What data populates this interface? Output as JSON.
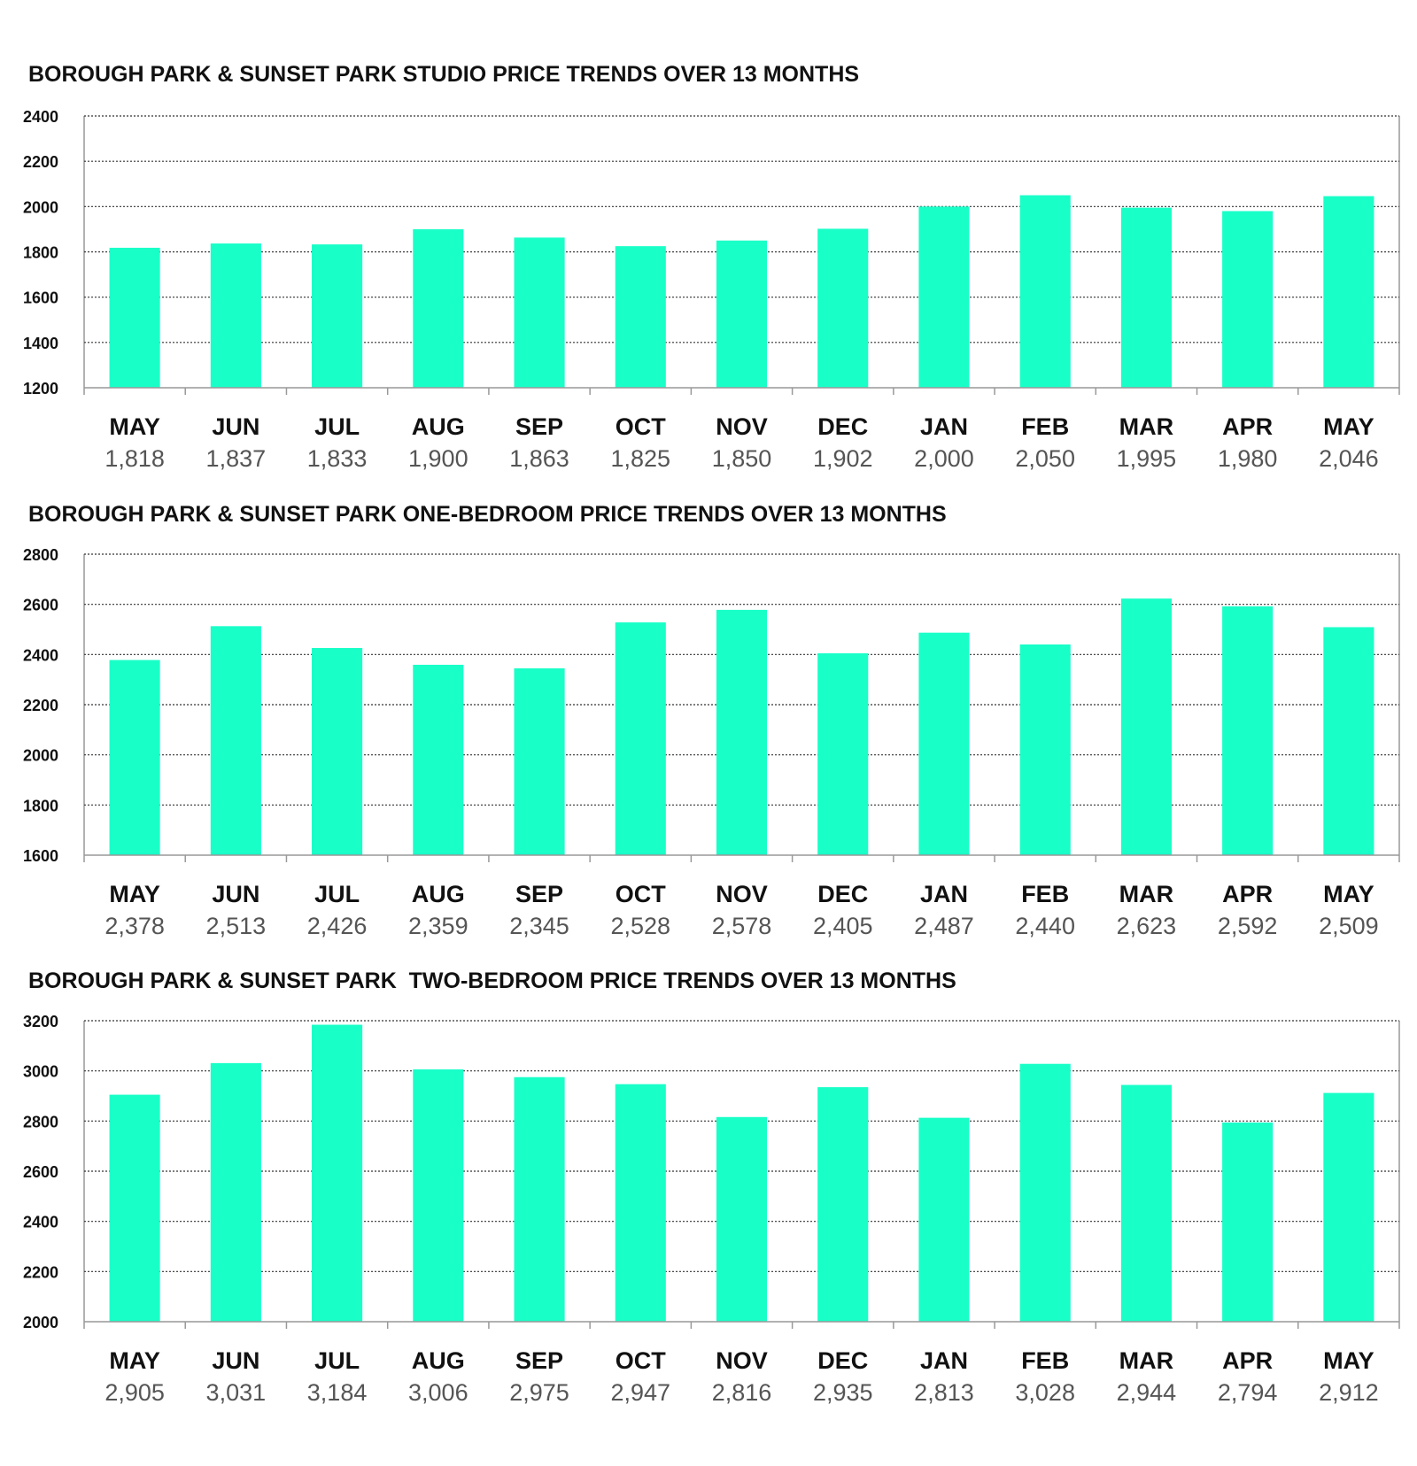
{
  "colors": {
    "bar": "#19ffc8",
    "grid": "#333333",
    "axis": "#999999"
  },
  "chart_data": [
    {
      "type": "bar",
      "title": "BOROUGH PARK & SUNSET PARK STUDIO PRICE TRENDS OVER 13 MONTHS",
      "categories": [
        "MAY",
        "JUN",
        "JUL",
        "AUG",
        "SEP",
        "OCT",
        "NOV",
        "DEC",
        "JAN",
        "FEB",
        "MAR",
        "APR",
        "MAY"
      ],
      "values": [
        1818,
        1837,
        1833,
        1900,
        1863,
        1825,
        1850,
        1902,
        2000,
        2050,
        1995,
        1980,
        2046
      ],
      "value_labels": [
        "1,818",
        "1,837",
        "1,833",
        "1,900",
        "1,863",
        "1,825",
        "1,850",
        "1,902",
        "2,000",
        "2,050",
        "1,995",
        "1,980",
        "2,046"
      ],
      "ylim": [
        1200,
        2400
      ],
      "yticks": [
        1200,
        1400,
        1600,
        1800,
        2000,
        2200,
        2400
      ],
      "grid": true,
      "legend": "none"
    },
    {
      "type": "bar",
      "title": "BOROUGH PARK & SUNSET PARK ONE-BEDROOM PRICE TRENDS OVER 13 MONTHS",
      "categories": [
        "MAY",
        "JUN",
        "JUL",
        "AUG",
        "SEP",
        "OCT",
        "NOV",
        "DEC",
        "JAN",
        "FEB",
        "MAR",
        "APR",
        "MAY"
      ],
      "values": [
        2378,
        2513,
        2426,
        2359,
        2345,
        2528,
        2578,
        2405,
        2487,
        2440,
        2623,
        2592,
        2509
      ],
      "value_labels": [
        "2,378",
        "2,513",
        "2,426",
        "2,359",
        "2,345",
        "2,528",
        "2,578",
        "2,405",
        "2,487",
        "2,440",
        "2,623",
        "2,592",
        "2,509"
      ],
      "ylim": [
        1600,
        2800
      ],
      "yticks": [
        1600,
        1800,
        2000,
        2200,
        2400,
        2600,
        2800
      ],
      "grid": true,
      "legend": "none"
    },
    {
      "type": "bar",
      "title": "BOROUGH PARK & SUNSET PARK  TWO-BEDROOM PRICE TRENDS OVER 13 MONTHS",
      "categories": [
        "MAY",
        "JUN",
        "JUL",
        "AUG",
        "SEP",
        "OCT",
        "NOV",
        "DEC",
        "JAN",
        "FEB",
        "MAR",
        "APR",
        "MAY"
      ],
      "values": [
        2905,
        3031,
        3184,
        3006,
        2975,
        2947,
        2816,
        2935,
        2813,
        3028,
        2944,
        2794,
        2912
      ],
      "value_labels": [
        "2,905",
        "3,031",
        "3,184",
        "3,006",
        "2,975",
        "2,947",
        "2,816",
        "2,935",
        "2,813",
        "3,028",
        "2,944",
        "2,794",
        "2,912"
      ],
      "ylim": [
        2000,
        3200
      ],
      "yticks": [
        2000,
        2200,
        2400,
        2600,
        2800,
        3000,
        3200
      ],
      "grid": true,
      "legend": "none"
    }
  ]
}
